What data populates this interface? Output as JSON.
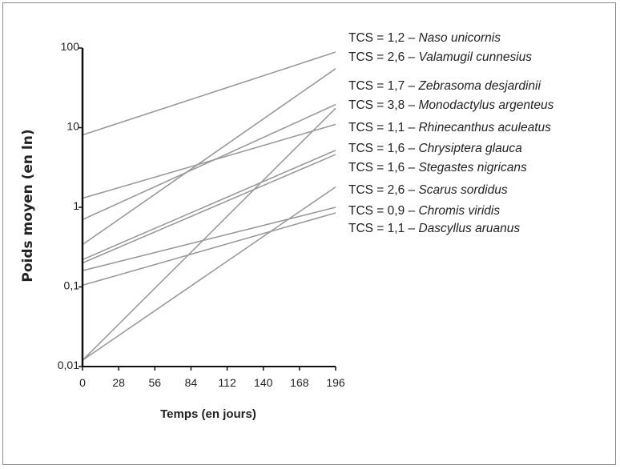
{
  "chart_data": {
    "type": "line",
    "xlabel": "Temps (en jours)",
    "ylabel": "Poids moyen (en ln)",
    "x_ticks": [
      0,
      28,
      56,
      84,
      112,
      140,
      168,
      196
    ],
    "x_tick_labels": [
      "0",
      "28",
      "56",
      "84",
      "112",
      "140",
      "168",
      "196"
    ],
    "xlim": [
      0,
      196
    ],
    "y_scale": "log",
    "y_ticks": [
      0.01,
      0.1,
      1,
      10,
      100
    ],
    "y_tick_labels": [
      "0,01",
      "0,1",
      "1",
      "10",
      "100"
    ],
    "ylim": [
      0.01,
      100
    ],
    "line_color": "#9a9a9a",
    "series": [
      {
        "prefix": "TCS = 1,2 – ",
        "species": "Naso unicornis",
        "values": [
          8.1,
          89
        ]
      },
      {
        "prefix": "TCS = 2,6 – ",
        "species": "Valamugil cunnesius",
        "values": [
          0.34,
          55
        ]
      },
      {
        "prefix": "TCS = 1,7 – ",
        "species": "Zebrasoma desjardinii",
        "values": [
          0.7,
          19.5
        ]
      },
      {
        "prefix": "TCS = 3,8 – ",
        "species": "Monodactylus argenteus",
        "values": [
          0.012,
          17.5
        ]
      },
      {
        "prefix": "TCS = 1,1 – ",
        "species": "Rhinecanthus  aculeatus",
        "values": [
          1.3,
          11
        ]
      },
      {
        "prefix": "TCS = 1,6 – ",
        "species": "Chrysiptera glauca",
        "values": [
          0.22,
          5.2
        ]
      },
      {
        "prefix": "TCS = 1,6 – ",
        "species": "Stegastes nigricans",
        "values": [
          0.2,
          4.6
        ]
      },
      {
        "prefix": "TCS = 2,6 – ",
        "species": "Scarus sordidus",
        "values": [
          0.012,
          1.8
        ]
      },
      {
        "prefix": "TCS = 0,9 – ",
        "species": "Chromis viridis",
        "values": [
          0.16,
          1.0
        ]
      },
      {
        "prefix": "TCS = 1,1 – ",
        "species": "Dascyllus aruanus",
        "values": [
          0.105,
          0.85
        ]
      }
    ]
  }
}
